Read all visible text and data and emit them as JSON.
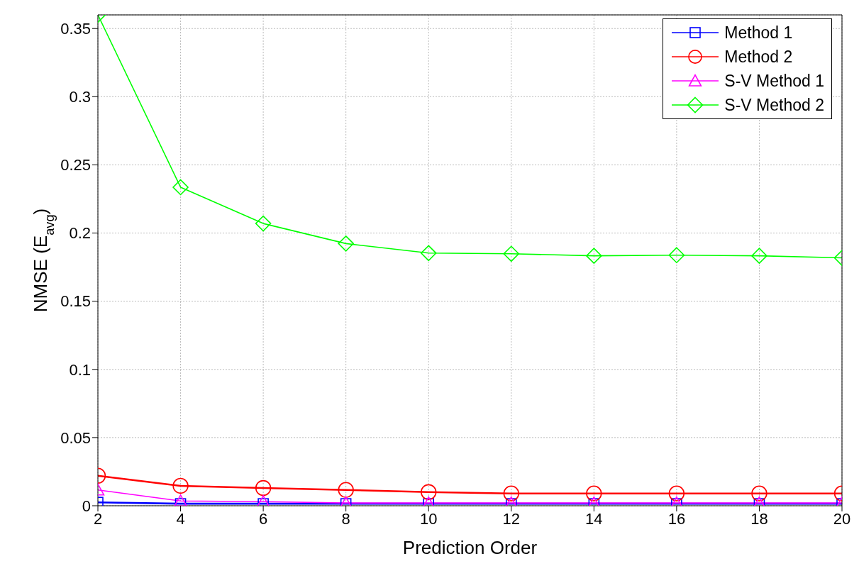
{
  "chart_data": {
    "type": "line",
    "xlabel": "Prediction Order",
    "ylabel": "NMSE (E$_{avg}$)",
    "x": [
      2,
      4,
      6,
      8,
      10,
      12,
      14,
      16,
      18,
      20
    ],
    "series": [
      {
        "name": "Method 1",
        "color": "#0000ff",
        "marker": "square",
        "values": [
          0.0025,
          0.0015,
          0.0015,
          0.0015,
          0.0015,
          0.0015,
          0.0015,
          0.0015,
          0.0015,
          0.0015
        ]
      },
      {
        "name": "Method 2",
        "color": "#ff0000",
        "marker": "circle",
        "values": [
          0.022,
          0.0146,
          0.013,
          0.0116,
          0.01,
          0.009,
          0.009,
          0.009,
          0.009,
          0.009
        ]
      },
      {
        "name": "S-V Method 1",
        "color": "#ff00ff",
        "marker": "triangle",
        "values": [
          0.0116,
          0.0035,
          0.003,
          0.002,
          0.002,
          0.002,
          0.002,
          0.002,
          0.002,
          0.002
        ]
      },
      {
        "name": "S-V Method 2",
        "color": "#00ff00",
        "marker": "diamond",
        "values": [
          0.36,
          0.2336,
          0.207,
          0.1923,
          0.1853,
          0.1848,
          0.1833,
          0.1838,
          0.1833,
          0.1818
        ]
      }
    ],
    "xlim": [
      2,
      20
    ],
    "xticks": [
      2,
      4,
      6,
      8,
      10,
      12,
      14,
      16,
      18,
      20
    ],
    "ylim": [
      0,
      0.36
    ],
    "yticks": [
      0,
      0.05,
      0.1,
      0.15,
      0.2,
      0.25,
      0.3,
      0.35
    ],
    "grid": true,
    "legend": "top right",
    "line_style": "solid"
  }
}
